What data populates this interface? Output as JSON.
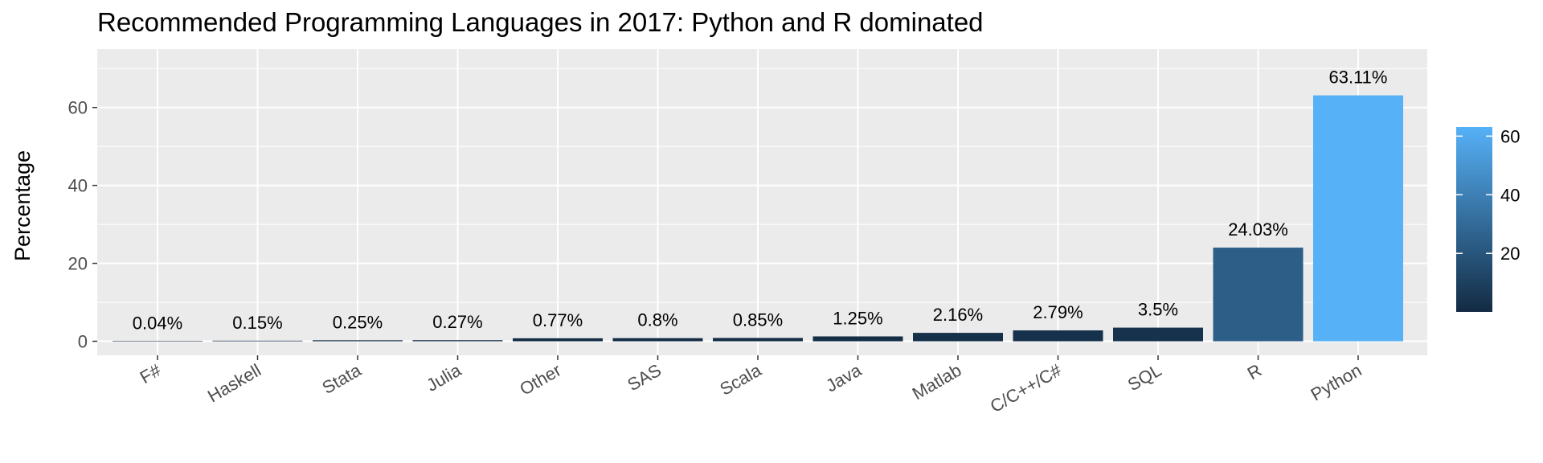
{
  "chart_data": {
    "type": "bar",
    "title": "Recommended Programming Languages in 2017: Python and R dominated",
    "xlabel": "",
    "ylabel": "Percentage",
    "categories": [
      "F#",
      "Haskell",
      "Stata",
      "Julia",
      "Other",
      "SAS",
      "Scala",
      "Java",
      "Matlab",
      "C/C++/C#",
      "SQL",
      "R",
      "Python"
    ],
    "values": [
      0.04,
      0.15,
      0.25,
      0.27,
      0.77,
      0.8,
      0.85,
      1.25,
      2.16,
      2.79,
      3.5,
      24.03,
      63.11
    ],
    "data_labels": [
      "0.04%",
      "0.15%",
      "0.25%",
      "0.27%",
      "0.77%",
      "0.8%",
      "0.85%",
      "1.25%",
      "2.16%",
      "2.79%",
      "3.5%",
      "24.03%",
      "63.11%"
    ],
    "ylim": [
      -3.6,
      75
    ],
    "yticks": [
      0,
      20,
      40,
      60
    ],
    "grid": true,
    "background": "#EBEBEB",
    "legend": {
      "position": "right",
      "type": "colorbar",
      "ticks": [
        20,
        40,
        60
      ],
      "range": [
        0.04,
        63.11
      ],
      "color_low": "#132B43",
      "color_high": "#56B1F7"
    }
  }
}
